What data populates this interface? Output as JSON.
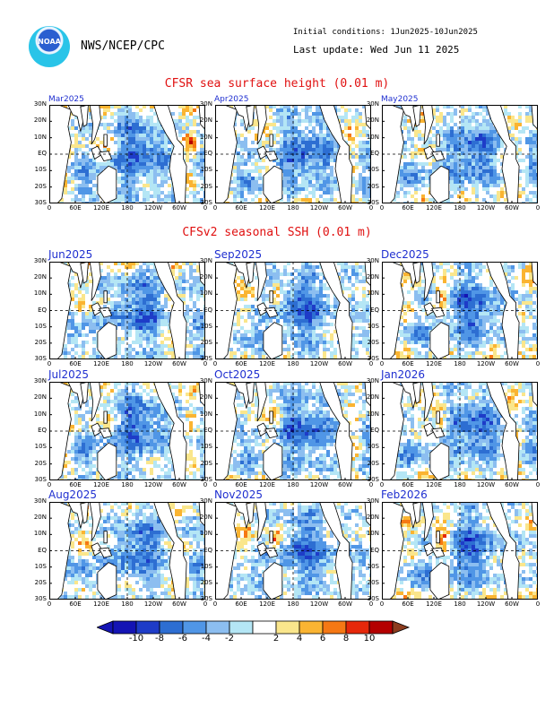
{
  "header": {
    "logo_text": "NOAA",
    "org": "NWS/NCEP/CPC",
    "initial_conditions": "Initial conditions: 1Jun2025-10Jun2025",
    "last_update": "Last update: Wed Jun 11 2025"
  },
  "section_cfsr": "CFSR sea surface height (0.01 m)",
  "section_cfsv2": "CFSv2 seasonal SSH (0.01 m)",
  "lat_ticks": [
    "30N",
    "20N",
    "10N",
    "EQ",
    "10S",
    "20S",
    "30S"
  ],
  "lon_ticks": [
    "0",
    "60E",
    "120E",
    "180",
    "120W",
    "60W",
    "0"
  ],
  "colorbar": {
    "ticks": [
      "-10",
      "-8",
      "-6",
      "-4",
      "-2",
      "2",
      "4",
      "6",
      "8",
      "10"
    ],
    "colors": [
      "#1414b4",
      "#1e3cc8",
      "#2d6ed2",
      "#5096e6",
      "#8cbef0",
      "#b4e6f5",
      "#ffffff",
      "#fae68c",
      "#fab432",
      "#f57814",
      "#e6280a",
      "#b40000",
      "#8c3c1e"
    ]
  },
  "chart_data": [
    {
      "type": "heatmap",
      "title": "Mar2025",
      "variable": "sea surface height",
      "units": "0.01 m",
      "xlabel": "",
      "ylabel": "",
      "xlim": [
        "0",
        "0"
      ],
      "ylim": [
        "30S",
        "30N"
      ],
      "grid": true
    },
    {
      "type": "heatmap",
      "title": "Apr2025",
      "variable": "sea surface height",
      "units": "0.01 m",
      "xlim": [
        "0",
        "0"
      ],
      "ylim": [
        "30S",
        "30N"
      ],
      "grid": true
    },
    {
      "type": "heatmap",
      "title": "May2025",
      "variable": "sea surface height",
      "units": "0.01 m",
      "xlim": [
        "0",
        "0"
      ],
      "ylim": [
        "30S",
        "30N"
      ],
      "grid": true
    },
    {
      "type": "heatmap",
      "title": "Jun2025",
      "variable": "SSH",
      "units": "0.01 m",
      "xlim": [
        "0",
        "0"
      ],
      "ylim": [
        "30S",
        "30N"
      ],
      "grid": true
    },
    {
      "type": "heatmap",
      "title": "Sep2025",
      "variable": "SSH",
      "units": "0.01 m",
      "xlim": [
        "0",
        "0"
      ],
      "ylim": [
        "30S",
        "30N"
      ],
      "grid": true
    },
    {
      "type": "heatmap",
      "title": "Dec2025",
      "variable": "SSH",
      "units": "0.01 m",
      "xlim": [
        "0",
        "0"
      ],
      "ylim": [
        "30S",
        "30N"
      ],
      "grid": true
    },
    {
      "type": "heatmap",
      "title": "Jul2025",
      "variable": "SSH",
      "units": "0.01 m",
      "xlim": [
        "0",
        "0"
      ],
      "ylim": [
        "30S",
        "30N"
      ],
      "grid": true
    },
    {
      "type": "heatmap",
      "title": "Oct2025",
      "variable": "SSH",
      "units": "0.01 m",
      "xlim": [
        "0",
        "0"
      ],
      "ylim": [
        "30S",
        "30N"
      ],
      "grid": true
    },
    {
      "type": "heatmap",
      "title": "Jan2026",
      "variable": "SSH",
      "units": "0.01 m",
      "xlim": [
        "0",
        "0"
      ],
      "ylim": [
        "30S",
        "30N"
      ],
      "grid": true
    },
    {
      "type": "heatmap",
      "title": "Aug2025",
      "variable": "SSH",
      "units": "0.01 m",
      "xlim": [
        "0",
        "0"
      ],
      "ylim": [
        "30S",
        "30N"
      ],
      "grid": true
    },
    {
      "type": "heatmap",
      "title": "Nov2025",
      "variable": "SSH",
      "units": "0.01 m",
      "xlim": [
        "0",
        "0"
      ],
      "ylim": [
        "30S",
        "30N"
      ],
      "grid": true
    },
    {
      "type": "heatmap",
      "title": "Feb2026",
      "variable": "SSH",
      "units": "0.01 m",
      "xlim": [
        "0",
        "0"
      ],
      "ylim": [
        "30S",
        "30N"
      ],
      "grid": true
    }
  ]
}
